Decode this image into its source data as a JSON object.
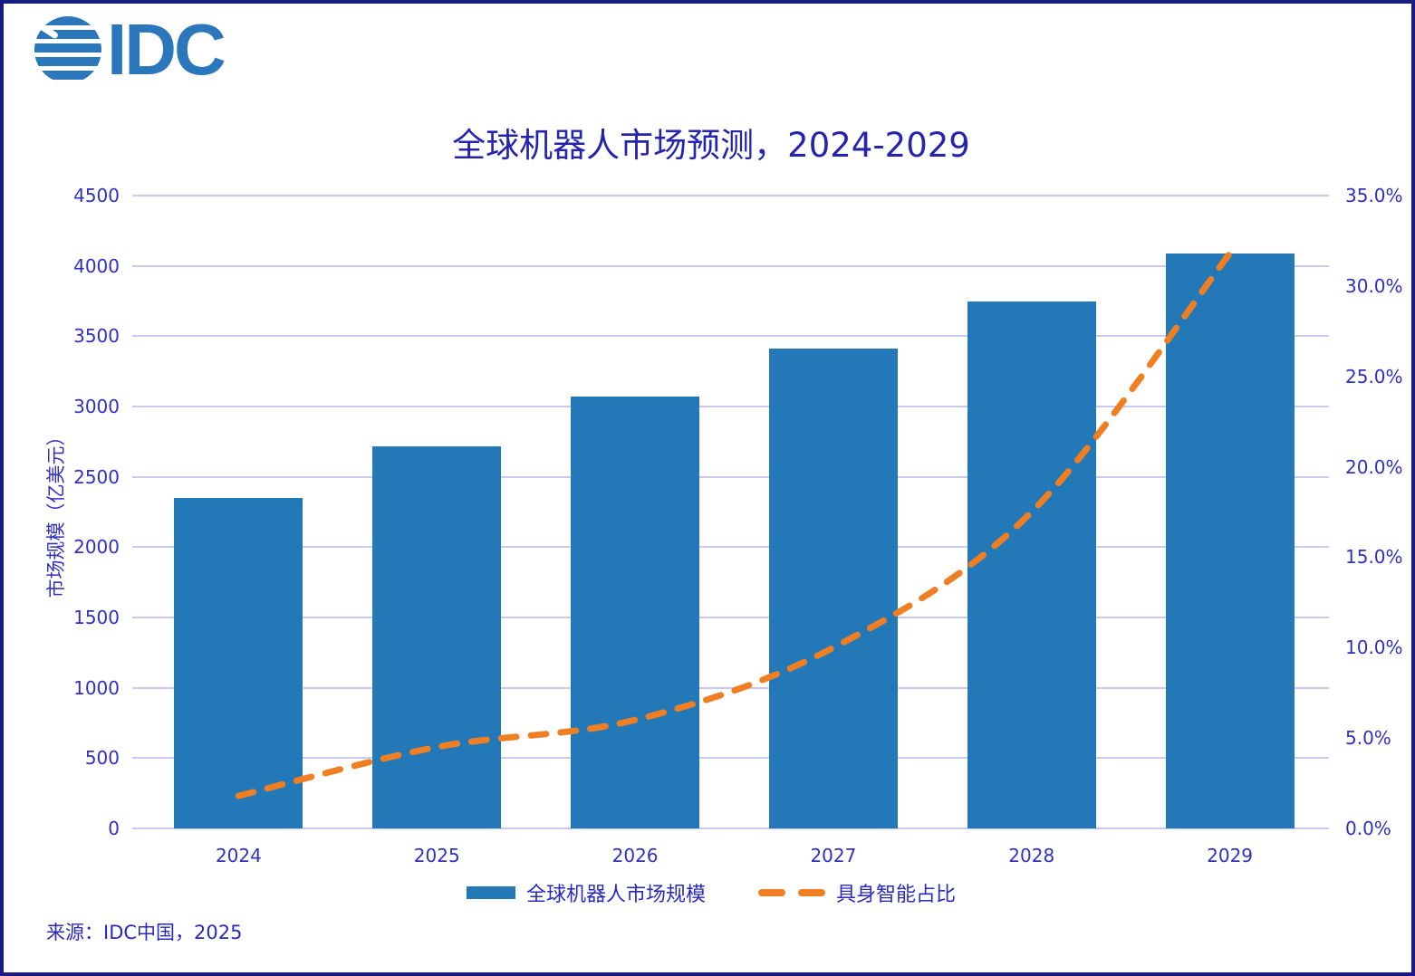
{
  "header": {
    "logo_text": "IDC",
    "title": "全球机器人市场预测，2024-2029"
  },
  "chart_data": {
    "type": "combo-bar-line",
    "title": "全球机器人市场预测，2024-2029",
    "categories": [
      "2024",
      "2025",
      "2026",
      "2027",
      "2028",
      "2029"
    ],
    "series": [
      {
        "name": "全球机器人市场规模",
        "type": "bar",
        "axis": "left",
        "unit": "亿美元",
        "values": [
          2350,
          2715,
          3070,
          3415,
          3750,
          4090
        ],
        "color": "#2379B7"
      },
      {
        "name": "具身智能占比",
        "type": "dashed-line",
        "axis": "right",
        "unit": "%",
        "values": [
          1.8,
          4.5,
          6.0,
          10.0,
          17.5,
          31.8
        ],
        "color": "#F07E22"
      }
    ],
    "left_axis": {
      "title": "市场规模（亿美元）",
      "min": 0,
      "max": 4500,
      "step": 500
    },
    "right_axis": {
      "min": 0,
      "max": 35,
      "step": 5,
      "decimals": 1,
      "suffix": "%"
    },
    "grid": {
      "show": true,
      "color": "#C9C9F0"
    },
    "legend_position": "bottom-center"
  },
  "legend": {
    "items": [
      {
        "label": "全球机器人市场规模",
        "swatch": "bar",
        "color": "#2379B7"
      },
      {
        "label": "具身智能占比",
        "swatch": "dashes",
        "color": "#F07E22"
      }
    ]
  },
  "footer": {
    "source": "来源：IDC中国，2025"
  },
  "colors": {
    "bar": "#2379B7",
    "line": "#F07E22",
    "grid": "#C9C9F0",
    "axis_text": "#3030C2",
    "title_text": "#2424AE",
    "border": "#1B1B85",
    "logo": "#2B77BC"
  }
}
